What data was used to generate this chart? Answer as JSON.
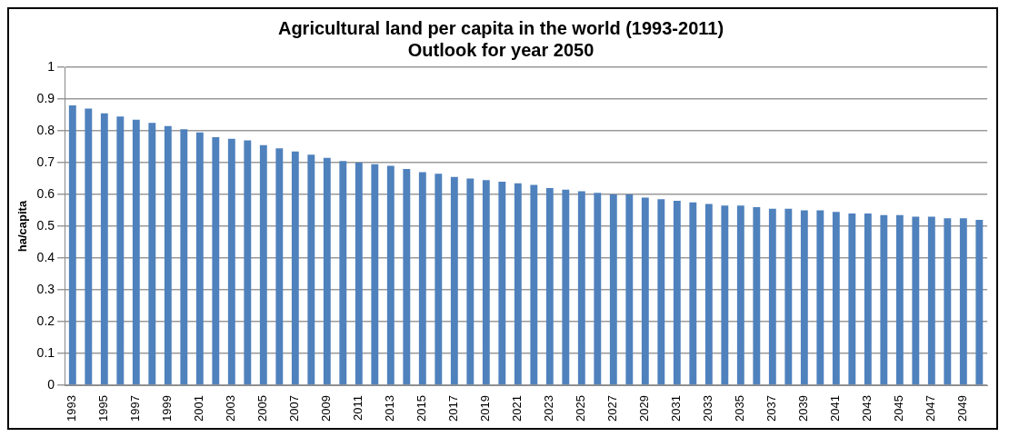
{
  "chart_data": {
    "type": "bar",
    "title": "Agricultural land per capita in the world (1993-2011)\nOutlook for year 2050",
    "ylabel": "ha/capita",
    "categories": [
      "1993",
      null,
      "1995",
      null,
      "1997",
      null,
      "1999",
      null,
      "2001",
      null,
      "2003",
      null,
      "2005",
      null,
      "2007",
      null,
      "2009",
      null,
      "2011",
      null,
      "2013",
      null,
      "2015",
      null,
      "2017",
      null,
      "2019",
      null,
      "2021",
      null,
      "2023",
      null,
      "2025",
      null,
      "2027",
      null,
      "2029",
      null,
      "2031",
      null,
      "2033",
      null,
      "2035",
      null,
      "2037",
      null,
      "2039",
      null,
      "2041",
      null,
      "2043",
      null,
      "2045",
      null,
      "2047",
      null,
      "2049",
      null
    ],
    "values": [
      0.88,
      0.87,
      0.855,
      0.845,
      0.835,
      0.825,
      0.815,
      0.805,
      0.795,
      0.78,
      0.775,
      0.77,
      0.755,
      0.745,
      0.735,
      0.725,
      0.715,
      0.705,
      0.7,
      0.695,
      0.69,
      0.68,
      0.67,
      0.665,
      0.655,
      0.65,
      0.645,
      0.64,
      0.635,
      0.63,
      0.62,
      0.615,
      0.61,
      0.605,
      0.6,
      0.6,
      0.59,
      0.585,
      0.58,
      0.575,
      0.57,
      0.565,
      0.565,
      0.56,
      0.555,
      0.555,
      0.55,
      0.55,
      0.545,
      0.54,
      0.54,
      0.535,
      0.535,
      0.53,
      0.53,
      0.525,
      0.525,
      0.52
    ],
    "color": "#4f81bd",
    "ylim": [
      0,
      1
    ],
    "yticks": [
      0,
      0.1,
      0.2,
      0.3,
      0.4,
      0.5,
      0.6,
      0.7,
      0.8,
      0.9,
      1
    ],
    "grid": "y",
    "legend": false
  }
}
